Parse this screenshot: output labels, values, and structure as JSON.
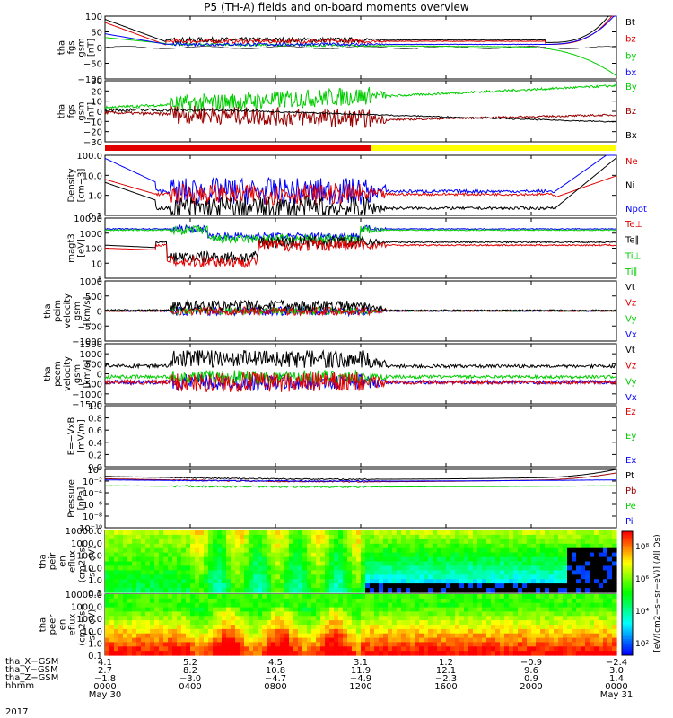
{
  "title": "P5 (TH-A) fields and on-board moments overview",
  "colors": {
    "black": "#000000",
    "red": "#e00000",
    "green": "#00cc00",
    "blue": "#0000ff",
    "yellow": "#ffff00",
    "darkred": "#990000"
  },
  "chart_data": [
    {
      "type": "line",
      "ylabel_lines": [
        "tha",
        "fgs",
        "gsm",
        "[nT]"
      ],
      "ylim": [
        -100,
        100
      ],
      "yticks": [
        "100",
        "50",
        "0",
        "−50",
        "−100"
      ],
      "series": [
        {
          "name": "Bt",
          "color": "black"
        },
        {
          "name": "bz",
          "color": "red"
        },
        {
          "name": "by",
          "color": "green"
        },
        {
          "name": "bx",
          "color": "blue"
        }
      ]
    },
    {
      "type": "line",
      "ylabel_lines": [
        "tha",
        "fgs",
        "gsm",
        "[nT]"
      ],
      "ylim": [
        -30,
        30
      ],
      "yticks": [
        "30",
        "20",
        "10",
        "0",
        "−10",
        "−20",
        "−30"
      ],
      "series": [
        {
          "name": "By",
          "color": "green"
        },
        {
          "name": "Bz",
          "color": "darkred"
        },
        {
          "name": "Bx",
          "color": "black"
        }
      ]
    },
    {
      "type": "bar",
      "ylabel_lines": [],
      "ylim": [
        0,
        1
      ],
      "yticks": [],
      "series": [
        {
          "name": "mode",
          "color": "red"
        },
        {
          "name": "mode",
          "color": "yellow"
        }
      ]
    },
    {
      "type": "line",
      "ylabel_lines": [
        "Density",
        "[cm−3]"
      ],
      "ylim": [
        0.1,
        300
      ],
      "yscale": "log",
      "yticks": [
        "100.0",
        "10.0",
        "1.0",
        "0.1"
      ],
      "series": [
        {
          "name": "Ne",
          "color": "red"
        },
        {
          "name": "Ni",
          "color": "black"
        },
        {
          "name": "Npot",
          "color": "blue"
        }
      ]
    },
    {
      "type": "line",
      "ylabel_lines": [
        "magt3",
        "[eV]"
      ],
      "ylim": [
        1,
        10000
      ],
      "yscale": "log",
      "yticks": [
        "10000",
        "1000",
        "100",
        "10",
        "1"
      ],
      "series": [
        {
          "name": "Te⊥",
          "color": "red"
        },
        {
          "name": "Te∥",
          "color": "black"
        },
        {
          "name": "Ti⊥",
          "color": "green"
        },
        {
          "name": "Ti∥",
          "color": "green"
        }
      ]
    },
    {
      "type": "line",
      "ylabel_lines": [
        "tha",
        "peim",
        "velocity",
        "gsm",
        "[km/s]"
      ],
      "ylim": [
        -1000,
        1000
      ],
      "yticks": [
        "1000",
        "500",
        "0",
        "−500",
        "−1000"
      ],
      "series": [
        {
          "name": "Vt",
          "color": "black"
        },
        {
          "name": "Vz",
          "color": "red"
        },
        {
          "name": "Vy",
          "color": "green"
        },
        {
          "name": "Vx",
          "color": "blue"
        }
      ]
    },
    {
      "type": "line",
      "ylabel_lines": [
        "tha",
        "peem",
        "velocity",
        "gsm",
        "[km/s]"
      ],
      "ylim": [
        -1500,
        1500
      ],
      "yticks": [
        "1500",
        "1000",
        "500",
        "0",
        "−500",
        "−1000",
        "−1500"
      ],
      "series": [
        {
          "name": "Vt",
          "color": "black"
        },
        {
          "name": "Vz",
          "color": "red"
        },
        {
          "name": "Vy",
          "color": "green"
        },
        {
          "name": "Vx",
          "color": "blue"
        }
      ]
    },
    {
      "type": "line",
      "ylabel_lines": [
        "E=−VxB",
        "[mV/m]"
      ],
      "ylim": [
        0,
        1
      ],
      "yticks": [
        "1.0",
        "0.8",
        "0.6",
        "0.4",
        "0.2",
        "0.0"
      ],
      "series": [
        {
          "name": "Ez",
          "color": "red"
        },
        {
          "name": "Ey",
          "color": "green"
        },
        {
          "name": "Ex",
          "color": "blue"
        }
      ]
    },
    {
      "type": "line",
      "ylabel_lines": [
        "Pressure",
        "[nPa]"
      ],
      "ylim": [
        1e-10,
        10
      ],
      "yscale": "log",
      "yticks": [
        "10⁰",
        "10⁻²",
        "10⁻⁴",
        "10⁻⁶",
        "10⁻⁸",
        "10⁻¹⁰"
      ],
      "series": [
        {
          "name": "Pt",
          "color": "black"
        },
        {
          "name": "Pb",
          "color": "darkred"
        },
        {
          "name": "Pe",
          "color": "green"
        },
        {
          "name": "Pi",
          "color": "blue"
        }
      ]
    },
    {
      "type": "heatmap",
      "ylabel_lines": [
        "tha",
        "peir",
        "en",
        "eflux",
        "(cm2−s−",
        "sr−eV)"
      ],
      "ylim": [
        0.1,
        20000
      ],
      "yscale": "log",
      "yticks": [
        "10000.0",
        "1000.0",
        "100.0",
        "10.0",
        "1.0",
        "0.1"
      ],
      "series": []
    },
    {
      "type": "heatmap",
      "ylabel_lines": [
        "tha",
        "peer",
        "en",
        "eflux",
        "(cm2−s−",
        "sr−eV)"
      ],
      "ylim": [
        0.1,
        20000
      ],
      "yscale": "log",
      "yticks": [
        "10000.0",
        "1000.0",
        "100.0",
        "10.0",
        "1.0",
        "0.1"
      ],
      "series": []
    }
  ],
  "colorbar": {
    "label": "[eV/(cm2−s−sr−eV)] (All Qs)",
    "ticks": [
      "10⁸",
      "10⁶",
      "10⁴",
      "10²"
    ]
  },
  "ephemeris": {
    "labels": [
      "tha_X−GSM",
      "tha_Y−GSM",
      "tha_Z−GSM",
      "hhmm",
      "2017"
    ],
    "columns": [
      [
        "4.1",
        "2.7",
        "−1.8",
        "0000",
        "May 30"
      ],
      [
        "5.2",
        "8.2",
        "−3.0",
        "0400",
        ""
      ],
      [
        "4.5",
        "10.8",
        "−4.7",
        "0800",
        ""
      ],
      [
        "3.1",
        "11.9",
        "−4.9",
        "1200",
        ""
      ],
      [
        "1.2",
        "12.1",
        "−2.3",
        "1600",
        ""
      ],
      [
        "−0.9",
        "9.6",
        "0.9",
        "2000",
        ""
      ],
      [
        "−2.4",
        "3.0",
        "1.4",
        "0000",
        "May 31"
      ]
    ]
  }
}
